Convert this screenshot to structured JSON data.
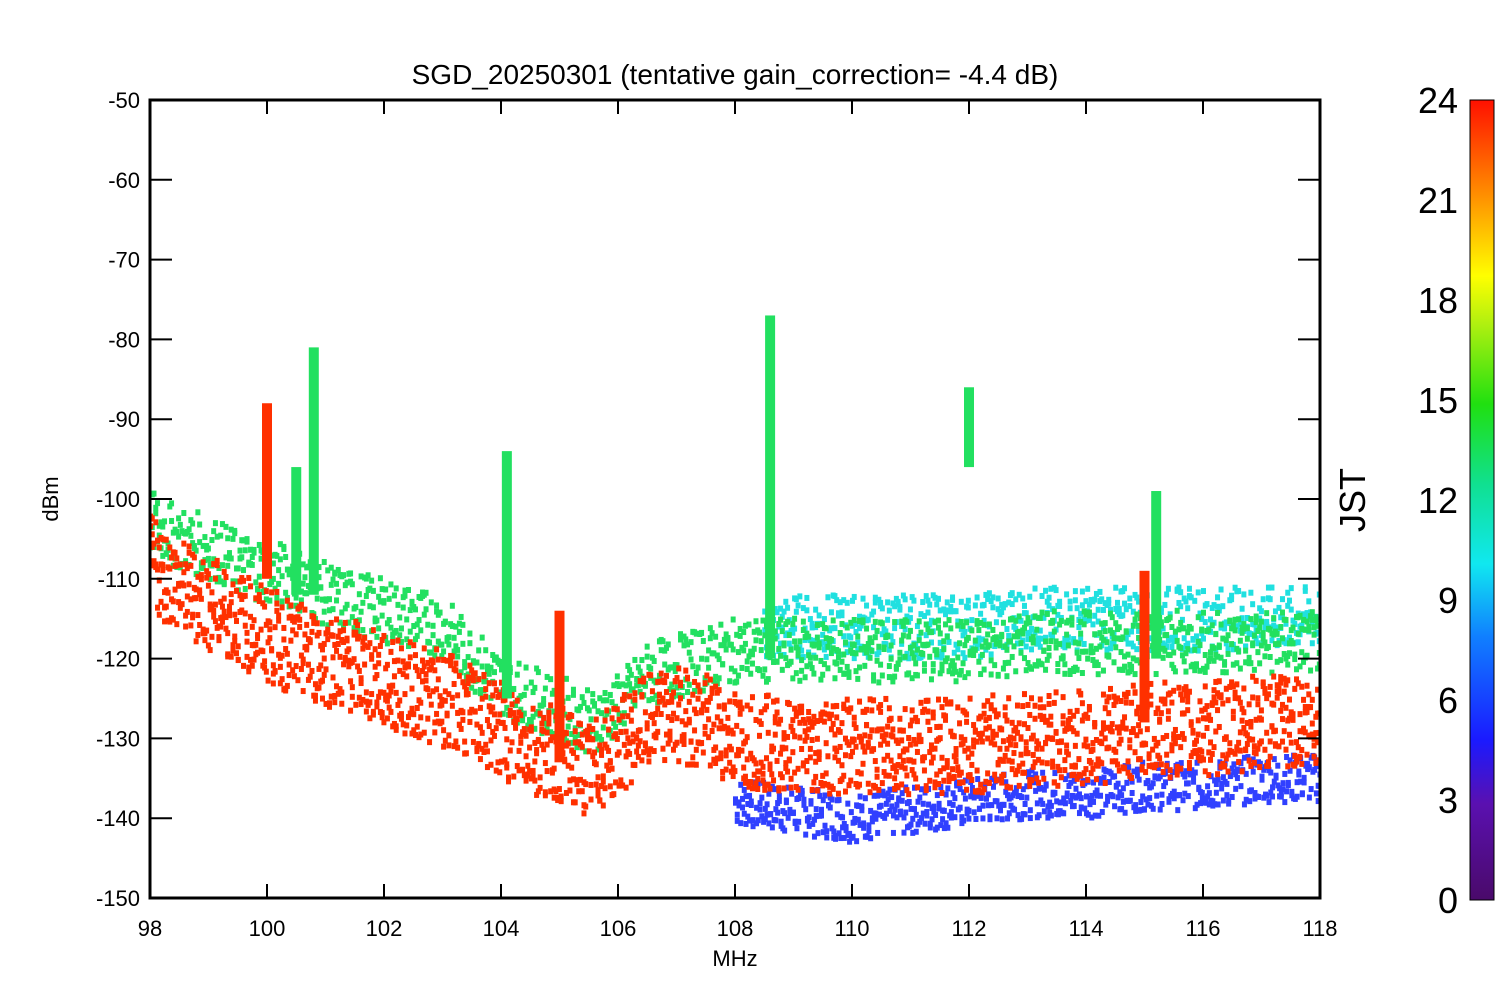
{
  "chart_data": {
    "type": "scatter",
    "title": "SGD_20250301 (tentative gain_correction= -4.4 dB)",
    "xlabel": "MHz",
    "ylabel": "dBm",
    "xlim": [
      98,
      118
    ],
    "ylim": [
      -150,
      -50
    ],
    "x_ticks": [
      "98",
      "100",
      "102",
      "104",
      "106",
      "108",
      "110",
      "112",
      "114",
      "116",
      "118"
    ],
    "y_ticks": [
      "-50",
      "-60",
      "-70",
      "-80",
      "-90",
      "-100",
      "-110",
      "-120",
      "-130",
      "-140",
      "-150"
    ],
    "grid": false,
    "colorbar": {
      "label": "JST",
      "range": [
        0,
        24
      ],
      "ticks": [
        "0",
        "3",
        "6",
        "9",
        "12",
        "15",
        "18",
        "21",
        "24"
      ],
      "colormap": "rainbow (purple-blue-cyan-green-yellow-red)"
    },
    "series": [
      {
        "color": "#ff3000",
        "description_color_value": 23,
        "points": [
          [
            98.0,
            -108
          ],
          [
            98.5,
            -111
          ],
          [
            99.0,
            -113
          ],
          [
            99.5,
            -115
          ],
          [
            100.0,
            -117
          ],
          [
            100.5,
            -119
          ],
          [
            101.0,
            -120
          ],
          [
            101.5,
            -121
          ],
          [
            102.0,
            -123
          ],
          [
            102.5,
            -124
          ],
          [
            103.0,
            -125
          ],
          [
            103.5,
            -127
          ],
          [
            104.0,
            -129
          ],
          [
            104.5,
            -131
          ],
          [
            105.0,
            -132
          ],
          [
            105.5,
            -134
          ],
          [
            106.0,
            -131
          ],
          [
            106.5,
            -128
          ],
          [
            107.0,
            -127
          ],
          [
            107.5,
            -128
          ],
          [
            108.0,
            -130
          ],
          [
            109.0,
            -131
          ],
          [
            110.0,
            -131
          ],
          [
            111.0,
            -131
          ],
          [
            112.0,
            -131
          ],
          [
            113.0,
            -130
          ],
          [
            114.0,
            -130
          ],
          [
            115.0,
            -129
          ],
          [
            116.0,
            -129
          ],
          [
            117.0,
            -128
          ],
          [
            118.0,
            -128
          ]
        ]
      },
      {
        "color": "#22e060",
        "description_color_value": 14,
        "points": [
          [
            98.0,
            -103
          ],
          [
            98.5,
            -105
          ],
          [
            99.0,
            -106
          ],
          [
            99.5,
            -108
          ],
          [
            100.0,
            -109
          ],
          [
            100.5,
            -110
          ],
          [
            101.0,
            -112
          ],
          [
            101.5,
            -113
          ],
          [
            102.0,
            -114
          ],
          [
            102.5,
            -115
          ],
          [
            103.0,
            -116
          ],
          [
            103.5,
            -120
          ],
          [
            104.0,
            -123
          ],
          [
            104.5,
            -125
          ],
          [
            105.0,
            -126
          ],
          [
            105.5,
            -128
          ],
          [
            106.0,
            -126
          ],
          [
            106.5,
            -122
          ],
          [
            107.0,
            -121
          ],
          [
            107.5,
            -120
          ],
          [
            108.0,
            -119
          ],
          [
            109.0,
            -119
          ],
          [
            110.0,
            -119
          ],
          [
            111.0,
            -119
          ],
          [
            112.0,
            -119
          ],
          [
            113.0,
            -118
          ],
          [
            114.0,
            -118
          ],
          [
            115.0,
            -118
          ],
          [
            116.0,
            -118
          ],
          [
            117.0,
            -118
          ],
          [
            118.0,
            -118
          ]
        ]
      },
      {
        "color": "#20e0e0",
        "description_color_value": 10,
        "points": [
          [
            108.5,
            -117
          ],
          [
            109.0,
            -116
          ],
          [
            110.0,
            -116
          ],
          [
            111.0,
            -116
          ],
          [
            112.0,
            -116
          ],
          [
            113.0,
            -115
          ],
          [
            114.0,
            -115
          ],
          [
            115.0,
            -115
          ],
          [
            116.0,
            -115
          ],
          [
            117.0,
            -115
          ],
          [
            118.0,
            -115
          ]
        ]
      },
      {
        "color": "#3040ff",
        "description_color_value": 4,
        "points": [
          [
            108.0,
            -138
          ],
          [
            109.0,
            -139
          ],
          [
            110.0,
            -140
          ],
          [
            111.0,
            -139
          ],
          [
            112.0,
            -138
          ],
          [
            113.0,
            -137
          ],
          [
            114.0,
            -137
          ],
          [
            115.0,
            -136
          ],
          [
            116.0,
            -136
          ],
          [
            117.0,
            -135
          ],
          [
            118.0,
            -135
          ]
        ]
      }
    ],
    "spikes": [
      {
        "x": 100.0,
        "ymin": -110,
        "ymax": -88,
        "color": "#ff3000"
      },
      {
        "x": 100.5,
        "ymin": -112,
        "ymax": -96,
        "color": "#22e060"
      },
      {
        "x": 100.8,
        "ymin": -112,
        "ymax": -81,
        "color": "#22e060"
      },
      {
        "x": 104.1,
        "ymin": -125,
        "ymax": -94,
        "color": "#22e060"
      },
      {
        "x": 105.0,
        "ymin": -133,
        "ymax": -114,
        "color": "#ff3000"
      },
      {
        "x": 108.6,
        "ymin": -120,
        "ymax": -77,
        "color": "#22e060"
      },
      {
        "x": 112.0,
        "ymin": -96,
        "ymax": -86,
        "color": "#22e060"
      },
      {
        "x": 115.0,
        "ymin": -128,
        "ymax": -109,
        "color": "#ff3000"
      },
      {
        "x": 115.2,
        "ymin": -120,
        "ymax": -99,
        "color": "#22e060"
      }
    ]
  }
}
